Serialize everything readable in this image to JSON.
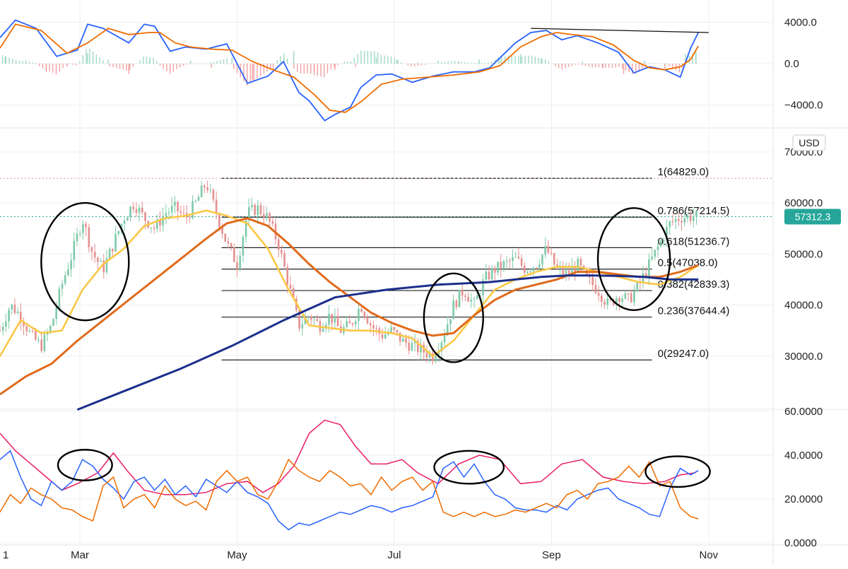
{
  "currency_label": "USD",
  "x_axis": {
    "partial_left_label": "1",
    "months": [
      "Mar",
      "May",
      "Jul",
      "Sep",
      "Nov"
    ],
    "month_day_index": [
      31,
      92,
      153,
      214,
      275
    ],
    "total_days": 300
  },
  "price_badge": {
    "value": 57312.3,
    "text": "57312.3",
    "color": "#26a69a"
  },
  "chart_data": [
    {
      "panel": "macd",
      "type": "line",
      "ylim": [
        -6000,
        6000
      ],
      "tick_values": [
        4000,
        0,
        -4000
      ],
      "tick_labels": [
        "4000.0",
        "0.0",
        "−4000.0"
      ],
      "series": [
        {
          "name": "MACD",
          "color": "#2962ff",
          "x": [
            0,
            6,
            14,
            22,
            30,
            34,
            40,
            50,
            56,
            60,
            66,
            72,
            80,
            88,
            96,
            104,
            110,
            116,
            120,
            126,
            130,
            136,
            140,
            146,
            152,
            160,
            168,
            176,
            184,
            190,
            200,
            206,
            212,
            218,
            224,
            232,
            240,
            246,
            252,
            258,
            264,
            268,
            271
          ],
          "values": [
            2500,
            4200,
            3400,
            700,
            1300,
            3800,
            3400,
            2000,
            3800,
            3600,
            1200,
            1600,
            1400,
            1900,
            -1900,
            -1200,
            200,
            -2800,
            -3600,
            -5500,
            -4900,
            -4200,
            -2300,
            -1100,
            -1000,
            -1800,
            -1200,
            -800,
            -800,
            -400,
            2000,
            3000,
            3200,
            2300,
            2700,
            2000,
            1100,
            -900,
            -300,
            -600,
            -1300,
            1500,
            3000
          ]
        },
        {
          "name": "Signal",
          "color": "#ef6c00",
          "x": [
            0,
            6,
            16,
            26,
            34,
            42,
            50,
            58,
            62,
            68,
            74,
            82,
            90,
            98,
            106,
            114,
            122,
            128,
            134,
            140,
            148,
            156,
            166,
            176,
            186,
            194,
            202,
            210,
            216,
            222,
            230,
            238,
            246,
            252,
            258,
            264,
            268,
            271
          ],
          "values": [
            1500,
            3800,
            3200,
            1000,
            2000,
            3400,
            2800,
            3000,
            3000,
            2000,
            1600,
            1400,
            1300,
            200,
            -600,
            -1300,
            -3000,
            -4500,
            -4700,
            -3700,
            -2000,
            -1500,
            -1300,
            -1100,
            -800,
            -200,
            1600,
            2600,
            3000,
            2800,
            2600,
            1800,
            300,
            -400,
            -600,
            -300,
            400,
            1700
          ]
        },
        {
          "name": "Histogram",
          "type": "bar",
          "x": [
            2,
            10,
            18,
            26,
            34,
            42,
            50,
            58,
            66,
            74,
            82,
            90,
            98,
            106,
            114,
            122,
            130,
            138,
            146,
            154,
            162,
            170,
            178,
            186,
            194,
            202,
            210,
            218,
            226,
            234,
            242,
            250,
            258,
            266,
            270
          ],
          "values": [
            700,
            300,
            -800,
            -300,
            1000,
            400,
            -1000,
            300,
            -600,
            300,
            -400,
            600,
            -1600,
            -700,
            1200,
            -800,
            -600,
            -300,
            600,
            400,
            100,
            300,
            200,
            400,
            600,
            900,
            500,
            -200,
            200,
            -400,
            -1000,
            300,
            -500,
            900,
            1300
          ]
        }
      ],
      "annotations": [
        {
          "type": "trendline",
          "x1": 206,
          "y1": 3400,
          "x2": 275,
          "y2": 3000
        }
      ]
    },
    {
      "panel": "price",
      "type": "candlestick",
      "ylim": [
        20000,
        74000
      ],
      "tick_values": [
        70000,
        60000,
        50000,
        40000,
        30000
      ],
      "tick_labels": [
        "70000.0",
        "60000.0",
        "50000.0",
        "40000.0",
        "30000.0"
      ],
      "close_path": {
        "x": [
          0,
          4,
          8,
          12,
          16,
          20,
          24,
          28,
          32,
          36,
          40,
          44,
          48,
          52,
          56,
          60,
          64,
          68,
          72,
          76,
          80,
          84,
          88,
          92,
          96,
          100,
          104,
          108,
          112,
          116,
          120,
          124,
          128,
          132,
          136,
          140,
          144,
          148,
          152,
          156,
          160,
          164,
          168,
          172,
          176,
          180,
          184,
          188,
          192,
          196,
          200,
          204,
          208,
          212,
          216,
          220,
          224,
          228,
          232,
          236,
          240,
          244,
          248,
          252,
          256,
          260,
          264,
          268,
          271
        ],
        "values": [
          35000,
          40000,
          38000,
          34000,
          32000,
          36000,
          44000,
          50000,
          57000,
          50000,
          47000,
          52000,
          57000,
          60000,
          57000,
          55000,
          58000,
          59000,
          57000,
          60000,
          64000,
          58000,
          52000,
          48000,
          58000,
          59000,
          57000,
          52000,
          44000,
          36000,
          38000,
          36000,
          38000,
          35000,
          36000,
          40000,
          36000,
          34000,
          35000,
          33000,
          32000,
          31000,
          30000,
          34000,
          40000,
          43000,
          40000,
          45000,
          47000,
          48000,
          49000,
          47000,
          48000,
          51000,
          47000,
          46000,
          48000,
          45000,
          43000,
          40000,
          42000,
          41000,
          44000,
          48000,
          52000,
          56000,
          57200,
          57312,
          57312
        ]
      },
      "series": [
        {
          "name": "MA20",
          "color": "#f9c846",
          "x": [
            0,
            8,
            16,
            24,
            32,
            40,
            48,
            56,
            64,
            72,
            80,
            88,
            96,
            104,
            112,
            120,
            128,
            136,
            144,
            152,
            160,
            168,
            176,
            184,
            192,
            200,
            208,
            216,
            224,
            232,
            240,
            248,
            256,
            264,
            271
          ],
          "values": [
            30000,
            37000,
            34500,
            35000,
            43000,
            48000,
            51000,
            55500,
            57000,
            57500,
            58500,
            57500,
            56000,
            51000,
            43000,
            36000,
            35500,
            35000,
            35000,
            34500,
            33500,
            30000,
            33000,
            38000,
            43000,
            45000,
            46500,
            47500,
            47500,
            46500,
            45500,
            44500,
            44000,
            45500,
            47800
          ]
        },
        {
          "name": "MA50",
          "color": "#e06a1b",
          "x": [
            0,
            10,
            20,
            30,
            40,
            50,
            60,
            70,
            80,
            88,
            96,
            104,
            112,
            120,
            128,
            136,
            144,
            152,
            160,
            168,
            176,
            184,
            192,
            200,
            208,
            216,
            224,
            232,
            240,
            248,
            256,
            264,
            271
          ],
          "values": [
            22500,
            26000,
            28500,
            33000,
            37000,
            41000,
            45000,
            49000,
            53000,
            56000,
            57000,
            55500,
            52000,
            48000,
            44500,
            41500,
            38500,
            36500,
            35000,
            34000,
            34500,
            38000,
            41000,
            43000,
            44000,
            45000,
            46500,
            46500,
            46000,
            45500,
            45500,
            46500,
            47800
          ]
        },
        {
          "name": "MA200",
          "color": "#1c2f8c",
          "x": [
            30,
            50,
            70,
            90,
            110,
            130,
            150,
            170,
            190,
            200,
            210,
            220,
            230,
            240,
            250,
            260,
            271
          ],
          "values": [
            19500,
            23500,
            27500,
            32000,
            37000,
            41500,
            43000,
            44000,
            44500,
            45000,
            45500,
            45800,
            45800,
            45700,
            45500,
            45000,
            45000
          ]
        }
      ],
      "fib_levels": [
        {
          "ratio": "1",
          "value": 64829.0,
          "label": "1(64829.0)"
        },
        {
          "ratio": "0.786",
          "value": 57214.5,
          "label": "0.786(57214.5)"
        },
        {
          "ratio": "0.618",
          "value": 51236.7,
          "label": "0.618(51236.7)"
        },
        {
          "ratio": "0.5",
          "value": 47038.0,
          "label": "0.5(47038.0)"
        },
        {
          "ratio": "0.382",
          "value": 42839.3,
          "label": "0.382(42839.3)"
        },
        {
          "ratio": "0.236",
          "value": 37644.4,
          "label": "0.236(37644.4)"
        },
        {
          "ratio": "0",
          "value": 29247.0,
          "label": "0(29247.0)"
        }
      ],
      "fib_start_day": 86,
      "fib_end_day": 253,
      "annotations": [
        {
          "type": "ellipse",
          "cx_day": 33,
          "cy_value": 48500,
          "rx_days": 17,
          "ry_value": 11500
        },
        {
          "type": "ellipse",
          "cx_day": 176,
          "cy_value": 37500,
          "rx_days": 11.5,
          "ry_value": 8700
        },
        {
          "type": "ellipse",
          "cx_day": 246,
          "cy_value": 49000,
          "rx_days": 14,
          "ry_value": 10000
        }
      ]
    },
    {
      "panel": "dmi",
      "type": "line",
      "ylim": [
        0,
        60
      ],
      "tick_values": [
        60,
        40,
        20,
        0
      ],
      "tick_labels": [
        "60.0000",
        "40.0000",
        "20.0000",
        "0.0000"
      ],
      "series": [
        {
          "name": "ADX",
          "color": "#e91e63",
          "x": [
            0,
            6,
            12,
            18,
            24,
            30,
            38,
            44,
            50,
            56,
            64,
            72,
            80,
            88,
            96,
            102,
            108,
            114,
            120,
            126,
            132,
            138,
            144,
            150,
            156,
            162,
            170,
            178,
            186,
            194,
            202,
            210,
            218,
            226,
            234,
            242,
            250,
            258,
            264,
            270
          ],
          "values": [
            50,
            42,
            36,
            30,
            24,
            27,
            32,
            41,
            32,
            24,
            22,
            22,
            23,
            27,
            28,
            23,
            27,
            35,
            50,
            56,
            54,
            44,
            36,
            36,
            38,
            32,
            27,
            36,
            40,
            38,
            27,
            28,
            36,
            38,
            30,
            28,
            27,
            28,
            31,
            32
          ]
        },
        {
          "name": "+DI",
          "color": "#2962ff",
          "x": [
            0,
            4,
            8,
            12,
            16,
            20,
            24,
            28,
            32,
            36,
            40,
            44,
            48,
            52,
            56,
            60,
            64,
            68,
            72,
            76,
            80,
            84,
            88,
            92,
            96,
            100,
            104,
            108,
            112,
            116,
            120,
            124,
            128,
            132,
            136,
            140,
            144,
            148,
            152,
            156,
            160,
            164,
            168,
            172,
            176,
            180,
            184,
            188,
            192,
            196,
            200,
            204,
            208,
            212,
            216,
            220,
            224,
            228,
            232,
            236,
            240,
            244,
            248,
            252,
            256,
            260,
            264,
            268,
            271
          ],
          "values": [
            38,
            42,
            30,
            20,
            17,
            28,
            24,
            28,
            38,
            35,
            29,
            25,
            20,
            28,
            30,
            24,
            29,
            22,
            26,
            21,
            29,
            26,
            23,
            28,
            23,
            21,
            18,
            10,
            6,
            9,
            8,
            10,
            12,
            14,
            13,
            15,
            17,
            16,
            14,
            16,
            17,
            19,
            21,
            34,
            37,
            30,
            36,
            28,
            22,
            20,
            16,
            15,
            15,
            14,
            17,
            15,
            20,
            22,
            24,
            25,
            20,
            18,
            16,
            13,
            12,
            25,
            34,
            31,
            33
          ]
        },
        {
          "name": "-DI",
          "color": "#ef6c00",
          "x": [
            0,
            4,
            8,
            12,
            16,
            20,
            24,
            28,
            32,
            36,
            40,
            44,
            48,
            52,
            56,
            60,
            64,
            68,
            72,
            76,
            80,
            84,
            88,
            92,
            96,
            100,
            104,
            108,
            112,
            116,
            120,
            124,
            128,
            132,
            136,
            140,
            144,
            148,
            152,
            156,
            160,
            164,
            168,
            172,
            176,
            180,
            184,
            188,
            192,
            196,
            200,
            204,
            208,
            212,
            216,
            220,
            224,
            228,
            232,
            236,
            240,
            244,
            248,
            252,
            256,
            260,
            264,
            268,
            271
          ],
          "values": [
            14,
            22,
            18,
            25,
            22,
            20,
            16,
            15,
            12,
            10,
            26,
            30,
            16,
            20,
            22,
            16,
            26,
            20,
            17,
            19,
            15,
            28,
            33,
            28,
            30,
            22,
            20,
            28,
            38,
            33,
            30,
            28,
            33,
            30,
            26,
            27,
            22,
            30,
            24,
            28,
            30,
            24,
            28,
            14,
            12,
            14,
            12,
            14,
            12,
            13,
            15,
            14,
            16,
            18,
            16,
            22,
            24,
            20,
            27,
            28,
            30,
            35,
            30,
            37,
            26,
            28,
            16,
            12,
            11
          ]
        }
      ],
      "annotations": [
        {
          "type": "ellipse",
          "cx_day": 33,
          "cy_value": 35.5,
          "rx_days": 10.5,
          "ry_value": 7
        },
        {
          "type": "ellipse",
          "cx_day": 182,
          "cy_value": 34.5,
          "rx_days": 13.5,
          "ry_value": 7.5
        },
        {
          "type": "ellipse",
          "cx_day": 263,
          "cy_value": 32.5,
          "rx_days": 12.5,
          "ry_value": 7
        }
      ]
    }
  ]
}
